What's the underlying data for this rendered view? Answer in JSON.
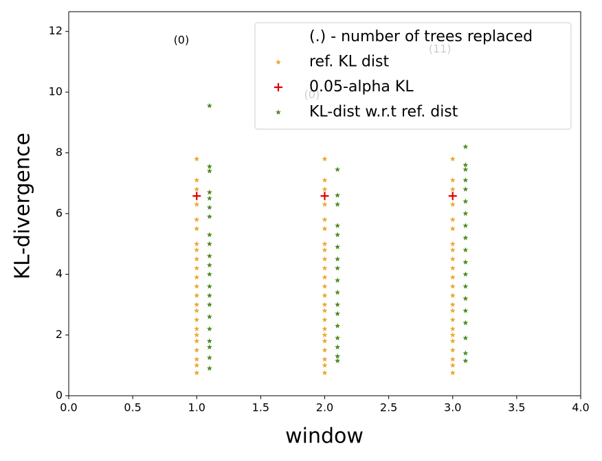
{
  "chart_data": {
    "type": "scatter",
    "xlabel": "window",
    "ylabel": "KL-divergence",
    "xlim": [
      0,
      4
    ],
    "ylim": [
      0,
      12.65
    ],
    "xticks": [
      {
        "value": 0,
        "label": "0.0"
      },
      {
        "value": 0.5,
        "label": "0.5"
      },
      {
        "value": 1,
        "label": "1.0"
      },
      {
        "value": 1.5,
        "label": "1.5"
      },
      {
        "value": 2,
        "label": "2.0"
      },
      {
        "value": 2.5,
        "label": "2.5"
      },
      {
        "value": 3,
        "label": "3.0"
      },
      {
        "value": 3.5,
        "label": "3.5"
      },
      {
        "value": 4,
        "label": "4.0"
      }
    ],
    "yticks": [
      0,
      2,
      4,
      6,
      8,
      10,
      12
    ],
    "grid": false,
    "legend_loc": "upper right",
    "legend_note": "(.) - number of trees replaced",
    "annotations": [
      {
        "text": "(0)",
        "x": 0.88,
        "y": 11.7
      },
      {
        "text": "(0)",
        "x": 1.9,
        "y": 9.9
      },
      {
        "text": "(11)",
        "x": 2.9,
        "y": 11.4
      }
    ],
    "series": [
      {
        "name": "ref. KL dist",
        "color": "#eda62e",
        "marker": "star",
        "x": [
          1,
          1,
          1,
          1,
          1,
          1,
          1,
          1,
          1,
          1,
          1,
          1,
          1,
          1,
          1,
          1,
          1,
          1,
          1,
          1,
          1,
          1,
          1,
          2,
          2,
          2,
          2,
          2,
          2,
          2,
          2,
          2,
          2,
          2,
          2,
          2,
          2,
          2,
          2,
          2,
          2,
          2,
          2,
          2,
          2,
          2,
          3,
          3,
          3,
          3,
          3,
          3,
          3,
          3,
          3,
          3,
          3,
          3,
          3,
          3,
          3,
          3,
          3,
          3,
          3,
          3,
          3,
          3,
          3
        ],
        "values": [
          0.75,
          1.0,
          1.2,
          1.5,
          1.8,
          2.0,
          2.2,
          2.5,
          2.8,
          3.0,
          3.3,
          3.6,
          3.9,
          4.2,
          4.5,
          4.8,
          5.0,
          5.5,
          5.8,
          6.3,
          6.8,
          7.1,
          7.8,
          0.75,
          1.0,
          1.2,
          1.5,
          1.8,
          2.0,
          2.2,
          2.5,
          2.8,
          3.0,
          3.3,
          3.6,
          3.9,
          4.2,
          4.5,
          4.8,
          5.0,
          5.5,
          5.8,
          6.3,
          6.8,
          7.1,
          7.8,
          0.75,
          1.0,
          1.2,
          1.5,
          1.8,
          2.0,
          2.2,
          2.5,
          2.8,
          3.0,
          3.3,
          3.6,
          3.9,
          4.2,
          4.5,
          4.8,
          5.0,
          5.5,
          5.8,
          6.3,
          6.8,
          7.1,
          7.8
        ]
      },
      {
        "name": "0.05-alpha KL",
        "color": "#e00000",
        "marker": "plus",
        "x": [
          1,
          2,
          3
        ],
        "values": [
          6.58,
          6.58,
          6.58
        ]
      },
      {
        "name": "KL-dist w.r.t ref. dist",
        "color": "#4d8a22",
        "marker": "star",
        "x": [
          1.1,
          1.1,
          1.1,
          1.1,
          1.1,
          1.1,
          1.1,
          1.1,
          1.1,
          1.1,
          1.1,
          1.1,
          1.1,
          1.1,
          1.1,
          1.1,
          1.1,
          1.1,
          1.1,
          1.1,
          1.1,
          2.1,
          2.1,
          2.1,
          2.1,
          2.1,
          2.1,
          2.1,
          2.1,
          2.1,
          2.1,
          2.1,
          2.1,
          2.1,
          2.1,
          2.1,
          2.1,
          2.1,
          3.1,
          3.1,
          3.1,
          3.1,
          3.1,
          3.1,
          3.1,
          3.1,
          3.1,
          3.1,
          3.1,
          3.1,
          3.1,
          3.1,
          3.1,
          3.1,
          3.1,
          3.1,
          3.1
        ],
        "values": [
          0.9,
          1.25,
          1.6,
          1.8,
          2.2,
          2.6,
          3.0,
          3.3,
          3.6,
          4.0,
          4.3,
          4.6,
          5.0,
          5.3,
          5.9,
          6.2,
          6.5,
          6.7,
          7.4,
          7.55,
          9.55,
          1.15,
          1.3,
          1.6,
          1.9,
          2.3,
          2.7,
          3.0,
          3.4,
          3.8,
          4.2,
          4.5,
          4.9,
          5.3,
          5.6,
          6.3,
          6.6,
          7.45,
          1.15,
          1.4,
          1.9,
          2.4,
          2.8,
          3.2,
          3.6,
          4.0,
          4.4,
          4.8,
          5.2,
          5.6,
          6.0,
          6.4,
          6.8,
          7.1,
          7.45,
          7.6,
          8.2
        ]
      }
    ]
  }
}
